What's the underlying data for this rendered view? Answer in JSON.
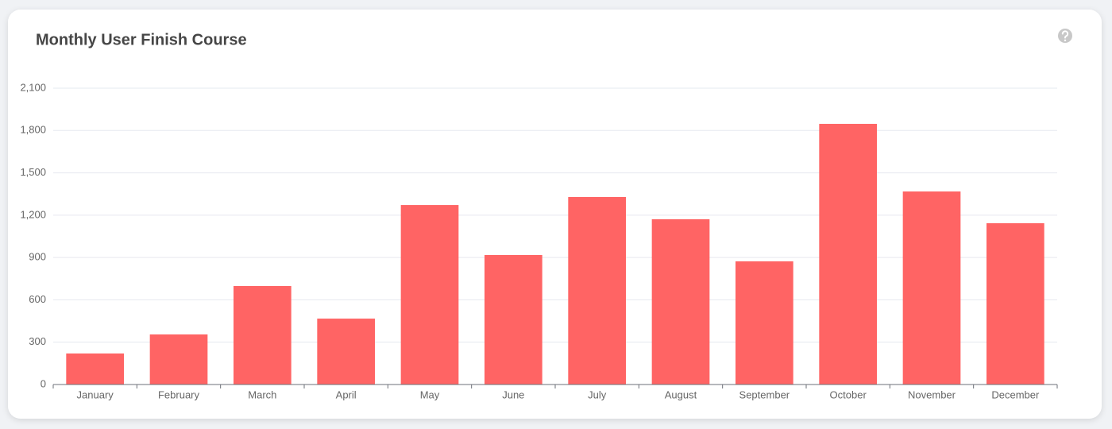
{
  "chart_data": {
    "type": "bar",
    "title": "Monthly User Finish Course",
    "categories": [
      "January",
      "February",
      "March",
      "April",
      "May",
      "June",
      "July",
      "August",
      "September",
      "October",
      "November",
      "December"
    ],
    "values": [
      220,
      355,
      698,
      467,
      1272,
      918,
      1329,
      1171,
      873,
      1847,
      1368,
      1143
    ],
    "color": "#ff6464",
    "ylim": [
      0,
      2100
    ],
    "yticks": [
      0,
      300,
      600,
      900,
      {
        "value": 1200,
        "label": "1,200"
      },
      {
        "value": 1500,
        "label": "1,500"
      },
      {
        "value": 1800,
        "label": "1,800"
      },
      {
        "value": 2100,
        "label": "2,100"
      }
    ],
    "grid": true
  }
}
